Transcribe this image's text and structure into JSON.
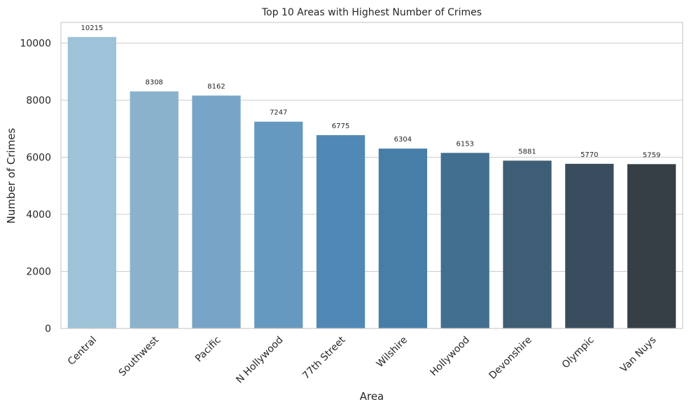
{
  "chart_data": {
    "type": "bar",
    "title": "Top 10 Areas with Highest Number of Crimes",
    "xlabel": "Area",
    "ylabel": "Number of Crimes",
    "categories": [
      "Central",
      "Southwest",
      "Pacific",
      "N Hollywood",
      "77th Street",
      "Wilshire",
      "Hollywood",
      "Devonshire",
      "Olympic",
      "Van Nuys"
    ],
    "values": [
      10215,
      8308,
      8162,
      7247,
      6775,
      6304,
      6153,
      5881,
      5770,
      5759
    ],
    "ylim": [
      0,
      10726
    ],
    "yticks": [
      0,
      2000,
      4000,
      6000,
      8000,
      10000
    ],
    "grid": true,
    "colors": [
      "#9ec2d8",
      "#8ab2cc",
      "#78a5c7",
      "#6699bf",
      "#5089b6",
      "#467ea8",
      "#426e90",
      "#3e5e75",
      "#3a4d5e",
      "#363f45"
    ],
    "grid_color": "#cccccc",
    "axes_edge_color": "#cccccc"
  }
}
